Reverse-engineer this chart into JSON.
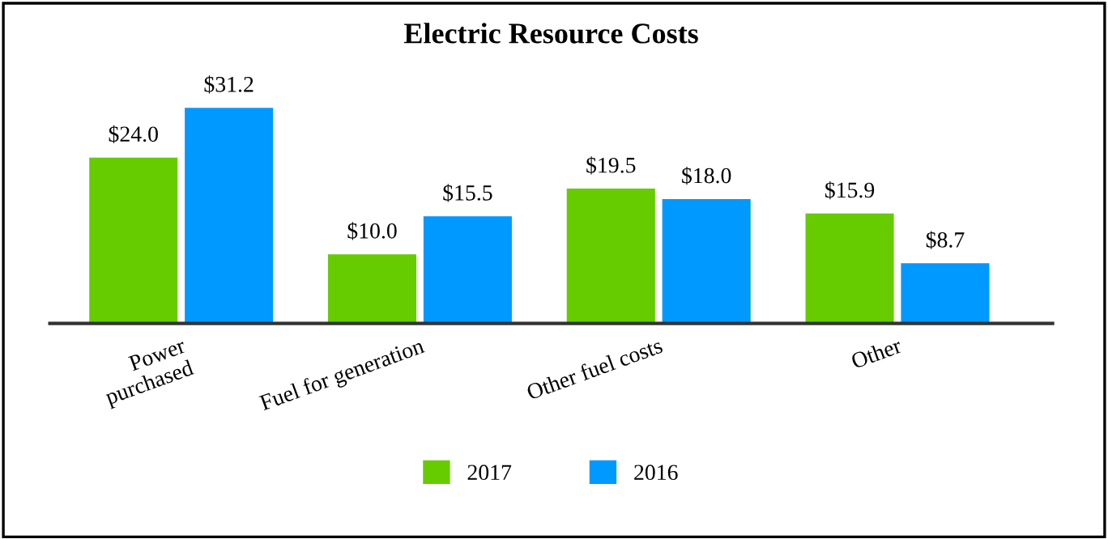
{
  "chart_data": {
    "type": "bar",
    "title": "Electric Resource Costs",
    "categories": [
      "Power\npurchased",
      "Fuel for generation",
      "Other fuel costs",
      "Other"
    ],
    "series": [
      {
        "name": "2017",
        "color": "#66cc00",
        "values": [
          24.0,
          10.0,
          19.5,
          15.9
        ],
        "value_labels": [
          "$24.0",
          "$10.0",
          "$19.5",
          "$15.9"
        ]
      },
      {
        "name": "2016",
        "color": "#0099ff",
        "values": [
          31.2,
          15.5,
          18.0,
          8.7
        ],
        "value_labels": [
          "$31.2",
          "$15.5",
          "$18.0",
          "$8.7"
        ]
      }
    ],
    "legend": "bottom",
    "grid": false,
    "tick_labels": "x"
  }
}
